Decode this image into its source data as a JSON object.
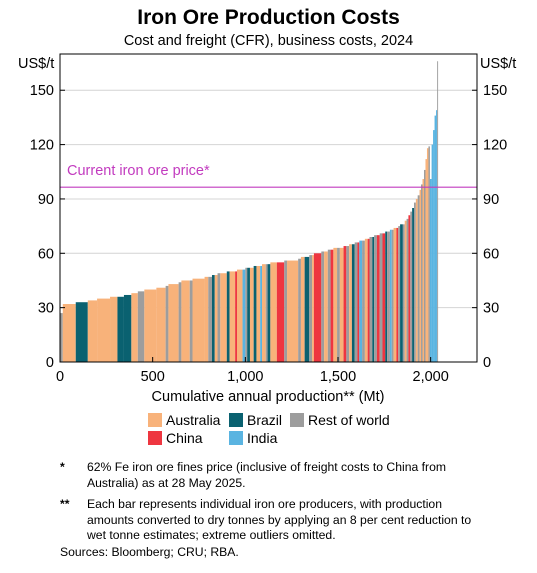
{
  "chart_data": {
    "type": "bar",
    "title": "Iron Ore Production Costs",
    "subtitle": "Cost and freight (CFR), business costs, 2024",
    "ylabel_left": "US$/t",
    "ylabel_right": "US$/t",
    "xlabel": "Cumulative annual production** (Mt)",
    "xlim": [
      0,
      2250
    ],
    "ylim": [
      0,
      170
    ],
    "x_ticks": [
      {
        "value": 0,
        "label": "0"
      },
      {
        "value": 500,
        "label": "500"
      },
      {
        "value": 1000,
        "label": "1,000"
      },
      {
        "value": 1500,
        "label": "1,500"
      },
      {
        "value": 2000,
        "label": "2,000"
      }
    ],
    "y_ticks": [
      {
        "value": 0,
        "label": "0"
      },
      {
        "value": 30,
        "label": "30"
      },
      {
        "value": 60,
        "label": "60"
      },
      {
        "value": 90,
        "label": "90"
      },
      {
        "value": 120,
        "label": "120"
      },
      {
        "value": 150,
        "label": "150"
      }
    ],
    "grid": true,
    "reference_line": {
      "value": 96.5,
      "label": "Current iron ore price*",
      "color": "#c23bbf"
    },
    "legend": [
      {
        "name": "Australia",
        "color": "#f8b27a"
      },
      {
        "name": "Brazil",
        "color": "#0a6170"
      },
      {
        "name": "Rest of world",
        "color": "#9d9d9d"
      },
      {
        "name": "China",
        "color": "#ee3640"
      },
      {
        "name": "India",
        "color": "#5ab4e1"
      }
    ],
    "series_colors": {
      "A": "#f8b27a",
      "B": "#0a6170",
      "R": "#9d9d9d",
      "C": "#ee3640",
      "I": "#5ab4e1"
    },
    "bars": [
      {
        "x0": 0,
        "x1": 15,
        "y": 27,
        "s": "R"
      },
      {
        "x0": 15,
        "x1": 85,
        "y": 32,
        "s": "A"
      },
      {
        "x0": 85,
        "x1": 150,
        "y": 33,
        "s": "B"
      },
      {
        "x0": 150,
        "x1": 200,
        "y": 34,
        "s": "A"
      },
      {
        "x0": 200,
        "x1": 270,
        "y": 35,
        "s": "A"
      },
      {
        "x0": 270,
        "x1": 310,
        "y": 36,
        "s": "A"
      },
      {
        "x0": 310,
        "x1": 345,
        "y": 36,
        "s": "B"
      },
      {
        "x0": 345,
        "x1": 385,
        "y": 37,
        "s": "B"
      },
      {
        "x0": 385,
        "x1": 420,
        "y": 38,
        "s": "A"
      },
      {
        "x0": 420,
        "x1": 455,
        "y": 39,
        "s": "R"
      },
      {
        "x0": 455,
        "x1": 520,
        "y": 40,
        "s": "A"
      },
      {
        "x0": 520,
        "x1": 570,
        "y": 41,
        "s": "A"
      },
      {
        "x0": 570,
        "x1": 585,
        "y": 42,
        "s": "R"
      },
      {
        "x0": 585,
        "x1": 640,
        "y": 43,
        "s": "A"
      },
      {
        "x0": 640,
        "x1": 655,
        "y": 44,
        "s": "R"
      },
      {
        "x0": 655,
        "x1": 700,
        "y": 45,
        "s": "A"
      },
      {
        "x0": 700,
        "x1": 715,
        "y": 45,
        "s": "R"
      },
      {
        "x0": 715,
        "x1": 780,
        "y": 46,
        "s": "A"
      },
      {
        "x0": 780,
        "x1": 800,
        "y": 47,
        "s": "A"
      },
      {
        "x0": 800,
        "x1": 820,
        "y": 47,
        "s": "R"
      },
      {
        "x0": 820,
        "x1": 835,
        "y": 48,
        "s": "B"
      },
      {
        "x0": 835,
        "x1": 850,
        "y": 48,
        "s": "A"
      },
      {
        "x0": 850,
        "x1": 865,
        "y": 49,
        "s": "R"
      },
      {
        "x0": 865,
        "x1": 900,
        "y": 49,
        "s": "A"
      },
      {
        "x0": 900,
        "x1": 915,
        "y": 50,
        "s": "B"
      },
      {
        "x0": 915,
        "x1": 945,
        "y": 50,
        "s": "A"
      },
      {
        "x0": 945,
        "x1": 955,
        "y": 50,
        "s": "C"
      },
      {
        "x0": 955,
        "x1": 985,
        "y": 51,
        "s": "A"
      },
      {
        "x0": 985,
        "x1": 1000,
        "y": 51,
        "s": "I"
      },
      {
        "x0": 1000,
        "x1": 1010,
        "y": 52,
        "s": "R"
      },
      {
        "x0": 1010,
        "x1": 1025,
        "y": 52,
        "s": "B"
      },
      {
        "x0": 1025,
        "x1": 1045,
        "y": 52,
        "s": "A"
      },
      {
        "x0": 1045,
        "x1": 1060,
        "y": 53,
        "s": "B"
      },
      {
        "x0": 1060,
        "x1": 1080,
        "y": 53,
        "s": "A"
      },
      {
        "x0": 1080,
        "x1": 1090,
        "y": 53,
        "s": "I"
      },
      {
        "x0": 1090,
        "x1": 1110,
        "y": 54,
        "s": "A"
      },
      {
        "x0": 1110,
        "x1": 1120,
        "y": 54,
        "s": "R"
      },
      {
        "x0": 1120,
        "x1": 1135,
        "y": 54,
        "s": "B"
      },
      {
        "x0": 1135,
        "x1": 1170,
        "y": 55,
        "s": "A"
      },
      {
        "x0": 1170,
        "x1": 1210,
        "y": 55,
        "s": "C"
      },
      {
        "x0": 1210,
        "x1": 1225,
        "y": 56,
        "s": "R"
      },
      {
        "x0": 1225,
        "x1": 1285,
        "y": 56,
        "s": "A"
      },
      {
        "x0": 1285,
        "x1": 1300,
        "y": 57,
        "s": "R"
      },
      {
        "x0": 1300,
        "x1": 1320,
        "y": 58,
        "s": "A"
      },
      {
        "x0": 1320,
        "x1": 1345,
        "y": 58,
        "s": "B"
      },
      {
        "x0": 1345,
        "x1": 1360,
        "y": 59,
        "s": "R"
      },
      {
        "x0": 1360,
        "x1": 1370,
        "y": 59,
        "s": "A"
      },
      {
        "x0": 1370,
        "x1": 1410,
        "y": 60,
        "s": "C"
      },
      {
        "x0": 1410,
        "x1": 1425,
        "y": 61,
        "s": "R"
      },
      {
        "x0": 1425,
        "x1": 1445,
        "y": 61,
        "s": "A"
      },
      {
        "x0": 1445,
        "x1": 1460,
        "y": 62,
        "s": "R"
      },
      {
        "x0": 1460,
        "x1": 1475,
        "y": 62,
        "s": "C"
      },
      {
        "x0": 1475,
        "x1": 1495,
        "y": 63,
        "s": "A"
      },
      {
        "x0": 1495,
        "x1": 1510,
        "y": 63,
        "s": "R"
      },
      {
        "x0": 1510,
        "x1": 1530,
        "y": 63,
        "s": "A"
      },
      {
        "x0": 1530,
        "x1": 1545,
        "y": 64,
        "s": "C"
      },
      {
        "x0": 1545,
        "x1": 1560,
        "y": 64,
        "s": "R"
      },
      {
        "x0": 1560,
        "x1": 1575,
        "y": 65,
        "s": "A"
      },
      {
        "x0": 1575,
        "x1": 1590,
        "y": 65,
        "s": "B"
      },
      {
        "x0": 1590,
        "x1": 1605,
        "y": 66,
        "s": "R"
      },
      {
        "x0": 1605,
        "x1": 1615,
        "y": 66,
        "s": "C"
      },
      {
        "x0": 1615,
        "x1": 1630,
        "y": 67,
        "s": "I"
      },
      {
        "x0": 1630,
        "x1": 1645,
        "y": 67,
        "s": "R"
      },
      {
        "x0": 1645,
        "x1": 1660,
        "y": 68,
        "s": "A"
      },
      {
        "x0": 1660,
        "x1": 1670,
        "y": 68,
        "s": "C"
      },
      {
        "x0": 1670,
        "x1": 1685,
        "y": 69,
        "s": "R"
      },
      {
        "x0": 1685,
        "x1": 1695,
        "y": 69,
        "s": "B"
      },
      {
        "x0": 1695,
        "x1": 1710,
        "y": 70,
        "s": "R"
      },
      {
        "x0": 1710,
        "x1": 1725,
        "y": 70,
        "s": "C"
      },
      {
        "x0": 1725,
        "x1": 1740,
        "y": 71,
        "s": "R"
      },
      {
        "x0": 1740,
        "x1": 1755,
        "y": 71,
        "s": "C"
      },
      {
        "x0": 1755,
        "x1": 1765,
        "y": 72,
        "s": "B"
      },
      {
        "x0": 1765,
        "x1": 1780,
        "y": 72,
        "s": "R"
      },
      {
        "x0": 1780,
        "x1": 1790,
        "y": 73,
        "s": "I"
      },
      {
        "x0": 1790,
        "x1": 1800,
        "y": 73,
        "s": "R"
      },
      {
        "x0": 1800,
        "x1": 1815,
        "y": 74,
        "s": "A"
      },
      {
        "x0": 1815,
        "x1": 1825,
        "y": 74,
        "s": "C"
      },
      {
        "x0": 1825,
        "x1": 1835,
        "y": 75,
        "s": "R"
      },
      {
        "x0": 1835,
        "x1": 1850,
        "y": 76,
        "s": "B"
      },
      {
        "x0": 1850,
        "x1": 1860,
        "y": 76,
        "s": "R"
      },
      {
        "x0": 1860,
        "x1": 1870,
        "y": 78,
        "s": "A"
      },
      {
        "x0": 1870,
        "x1": 1880,
        "y": 79,
        "s": "R"
      },
      {
        "x0": 1880,
        "x1": 1890,
        "y": 81,
        "s": "C"
      },
      {
        "x0": 1890,
        "x1": 1900,
        "y": 83,
        "s": "R"
      },
      {
        "x0": 1900,
        "x1": 1910,
        "y": 85,
        "s": "B"
      },
      {
        "x0": 1910,
        "x1": 1920,
        "y": 88,
        "s": "R"
      },
      {
        "x0": 1920,
        "x1": 1930,
        "y": 90,
        "s": "A"
      },
      {
        "x0": 1930,
        "x1": 1940,
        "y": 92,
        "s": "R"
      },
      {
        "x0": 1940,
        "x1": 1948,
        "y": 95,
        "s": "A"
      },
      {
        "x0": 1948,
        "x1": 1956,
        "y": 98,
        "s": "R"
      },
      {
        "x0": 1956,
        "x1": 1964,
        "y": 101,
        "s": "A"
      },
      {
        "x0": 1964,
        "x1": 1972,
        "y": 106,
        "s": "R"
      },
      {
        "x0": 1972,
        "x1": 1980,
        "y": 112,
        "s": "A"
      },
      {
        "x0": 1980,
        "x1": 1988,
        "y": 118,
        "s": "A"
      },
      {
        "x0": 1988,
        "x1": 1996,
        "y": 119,
        "s": "R"
      },
      {
        "x0": 1996,
        "x1": 2005,
        "y": 101,
        "s": "I"
      },
      {
        "x0": 2005,
        "x1": 2013,
        "y": 120,
        "s": "I"
      },
      {
        "x0": 2013,
        "x1": 2021,
        "y": 128,
        "s": "I"
      },
      {
        "x0": 2021,
        "x1": 2029,
        "y": 136,
        "s": "I"
      },
      {
        "x0": 2029,
        "x1": 2035,
        "y": 139,
        "s": "I"
      },
      {
        "x0": 2035,
        "x1": 2040,
        "y": 166,
        "s": "R"
      }
    ]
  },
  "notes": [
    {
      "marker": "*",
      "text": "62% Fe iron ore fines price (inclusive of freight costs to China from Australia) as at 28 May 2025."
    },
    {
      "marker": "**",
      "text": "Each bar represents individual iron ore producers, with production amounts converted to dry tonnes by applying an 8 per cent reduction to wet tonne estimates; extreme outliers omitted."
    }
  ],
  "sources": "Sources: Bloomberg; CRU; RBA."
}
